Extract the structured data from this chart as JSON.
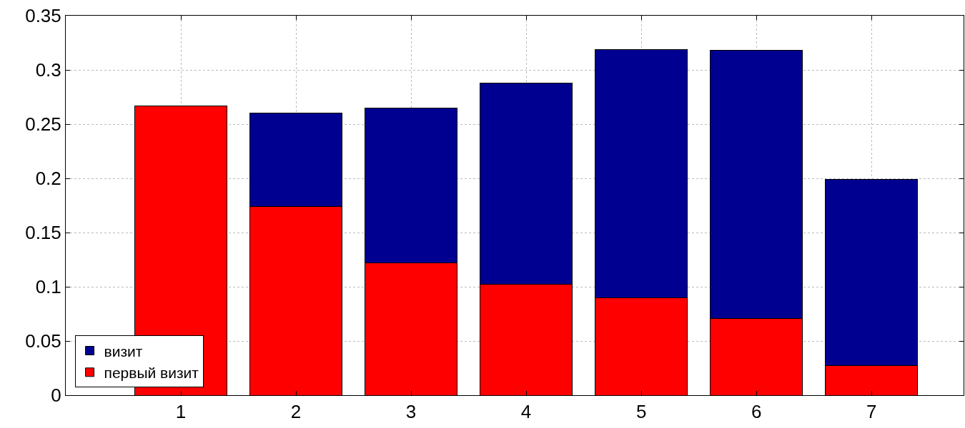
{
  "chart_data": {
    "type": "bar",
    "stacked": true,
    "x": [
      1,
      2,
      3,
      4,
      5,
      6,
      7
    ],
    "series": [
      {
        "name": "первый визит",
        "color": "#ff0000",
        "values": [
          0.267,
          0.174,
          0.122,
          0.102,
          0.09,
          0.071,
          0.027
        ]
      },
      {
        "name": "визит",
        "color": "#000090",
        "values": [
          null,
          0.086,
          0.143,
          0.186,
          0.229,
          0.247,
          0.172
        ]
      }
    ],
    "xlim": [
      0,
      7.8
    ],
    "xticks": [
      1,
      2,
      3,
      4,
      5,
      6,
      7
    ],
    "ylim": [
      0,
      0.35
    ],
    "yticks": [
      0,
      0.05,
      0.1,
      0.15,
      0.2,
      0.25,
      0.3,
      0.35
    ],
    "grid": true,
    "legend": "bottom left"
  }
}
